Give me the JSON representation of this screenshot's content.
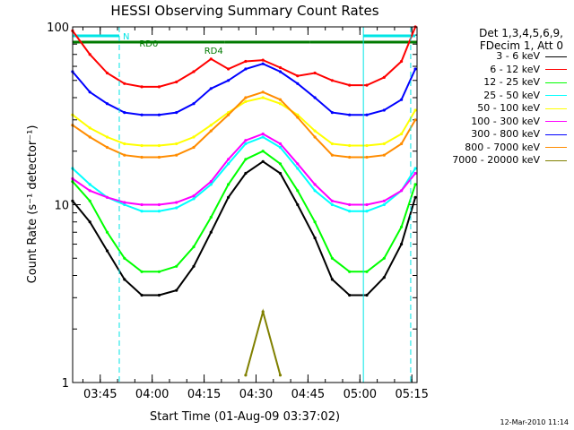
{
  "chart_data": {
    "type": "line",
    "title": "HESSI Observing Summary Count Rates",
    "xlabel": "Start Time (01-Aug-09 03:37:02)",
    "ylabel": "Count Rate (s⁻¹ detector⁻¹)",
    "y_scale": "log",
    "ylim": [
      1,
      100
    ],
    "xlim": [
      "03:37:02",
      "05:16:30"
    ],
    "x_ticks": [
      "03:45",
      "04:00",
      "04:15",
      "04:30",
      "04:45",
      "05:00",
      "05:15"
    ],
    "y_ticks": [
      "1",
      "10",
      "100"
    ],
    "legend_header": [
      "Det 1,3,4,5,6,9,",
      "FDecim 1, Att 0"
    ],
    "legend_position": "right",
    "annotations": [
      {
        "label": "N",
        "from": "03:37:02",
        "to": "03:50:30",
        "color": "#00e5e5"
      },
      {
        "label": "RD0",
        "from": "03:37:02",
        "to": "04:21:00",
        "color": "#007a00"
      },
      {
        "label": "RD4",
        "from": "04:21:00",
        "to": "04:45:30",
        "color": "#007a00"
      },
      {
        "label": "",
        "from": "04:45:30",
        "to": "05:16:30",
        "color": "#007a00"
      },
      {
        "label": "",
        "from": "05:01:00",
        "to": "05:16:00",
        "color": "#00e5e5"
      }
    ],
    "vlines": [
      {
        "x": "03:50:30",
        "style": "dashed",
        "color": "#00e5e5"
      },
      {
        "x": "05:14:40",
        "style": "dashed",
        "color": "#00e5e5"
      },
      {
        "x": "03:37:02",
        "style": "solid",
        "color": "#00e5e5"
      },
      {
        "x": "05:01:00",
        "style": "solid",
        "color": "#00e5e5"
      }
    ],
    "x": [
      "03:37",
      "03:42",
      "03:47",
      "03:52",
      "03:57",
      "04:02",
      "04:07",
      "04:12",
      "04:17",
      "04:22",
      "04:27",
      "04:32",
      "04:37",
      "04:42",
      "04:47",
      "04:52",
      "04:57",
      "05:02",
      "05:07",
      "05:12",
      "05:16"
    ],
    "series": [
      {
        "name": "3 - 6 keV",
        "color": "#000000",
        "values": [
          10.5,
          8,
          5.5,
          3.8,
          3.1,
          3.1,
          3.3,
          4.5,
          7,
          11,
          15,
          17.5,
          15,
          10,
          6.5,
          3.8,
          3.1,
          3.1,
          3.9,
          6,
          11
        ]
      },
      {
        "name": "6 - 12 keV",
        "color": "#ff0000",
        "values": [
          95,
          70,
          55,
          48,
          46,
          46,
          49,
          56,
          66,
          58,
          64,
          65,
          59,
          53,
          55,
          50,
          47,
          47,
          52,
          64,
          100
        ]
      },
      {
        "name": "12 - 25 keV",
        "color": "#00ff00",
        "values": [
          13.5,
          10.5,
          7,
          5,
          4.2,
          4.2,
          4.5,
          5.8,
          8.5,
          13,
          18,
          20,
          17,
          12,
          8,
          5,
          4.2,
          4.2,
          5,
          7.5,
          13
        ]
      },
      {
        "name": "25 - 50 keV",
        "color": "#00ffff",
        "values": [
          16,
          13,
          11,
          10,
          9.2,
          9.2,
          9.6,
          10.8,
          13,
          17,
          22,
          24,
          21,
          16,
          12,
          10,
          9.2,
          9.2,
          10,
          12,
          16
        ]
      },
      {
        "name": "50 - 100 keV",
        "color": "#ffff00",
        "values": [
          32,
          27,
          24,
          22,
          21.5,
          21.5,
          22,
          24,
          28,
          33,
          38,
          40,
          37,
          32,
          26,
          22,
          21.5,
          21.5,
          22,
          25,
          34
        ]
      },
      {
        "name": "100 - 300 keV",
        "color": "#ff00ff",
        "values": [
          14,
          12,
          11,
          10.3,
          10,
          10,
          10.3,
          11.2,
          13.5,
          18,
          23,
          25,
          22,
          17,
          13,
          10.5,
          10,
          10,
          10.5,
          12,
          15
        ]
      },
      {
        "name": "300 - 800 keV",
        "color": "#0000ff",
        "values": [
          56,
          43,
          37,
          33,
          32,
          32,
          33,
          37,
          45,
          50,
          58,
          62,
          56,
          48,
          40,
          33,
          32,
          32,
          34,
          39,
          58
        ]
      },
      {
        "name": "800 - 7000 keV",
        "color": "#ff8c00",
        "values": [
          28,
          24,
          21,
          19,
          18.5,
          18.5,
          19,
          21,
          26,
          32,
          40,
          43,
          39,
          31,
          24,
          19,
          18.5,
          18.5,
          19,
          22,
          30
        ]
      },
      {
        "name": "7000 - 20000 keV",
        "color": "#808000",
        "values": [
          null,
          null,
          null,
          null,
          null,
          null,
          null,
          null,
          null,
          null,
          1.1,
          2.5,
          1.1,
          null,
          null,
          null,
          null,
          null,
          null,
          null,
          null
        ]
      }
    ]
  },
  "footer": {
    "timestamp": "12-Mar-2010 11:14"
  }
}
